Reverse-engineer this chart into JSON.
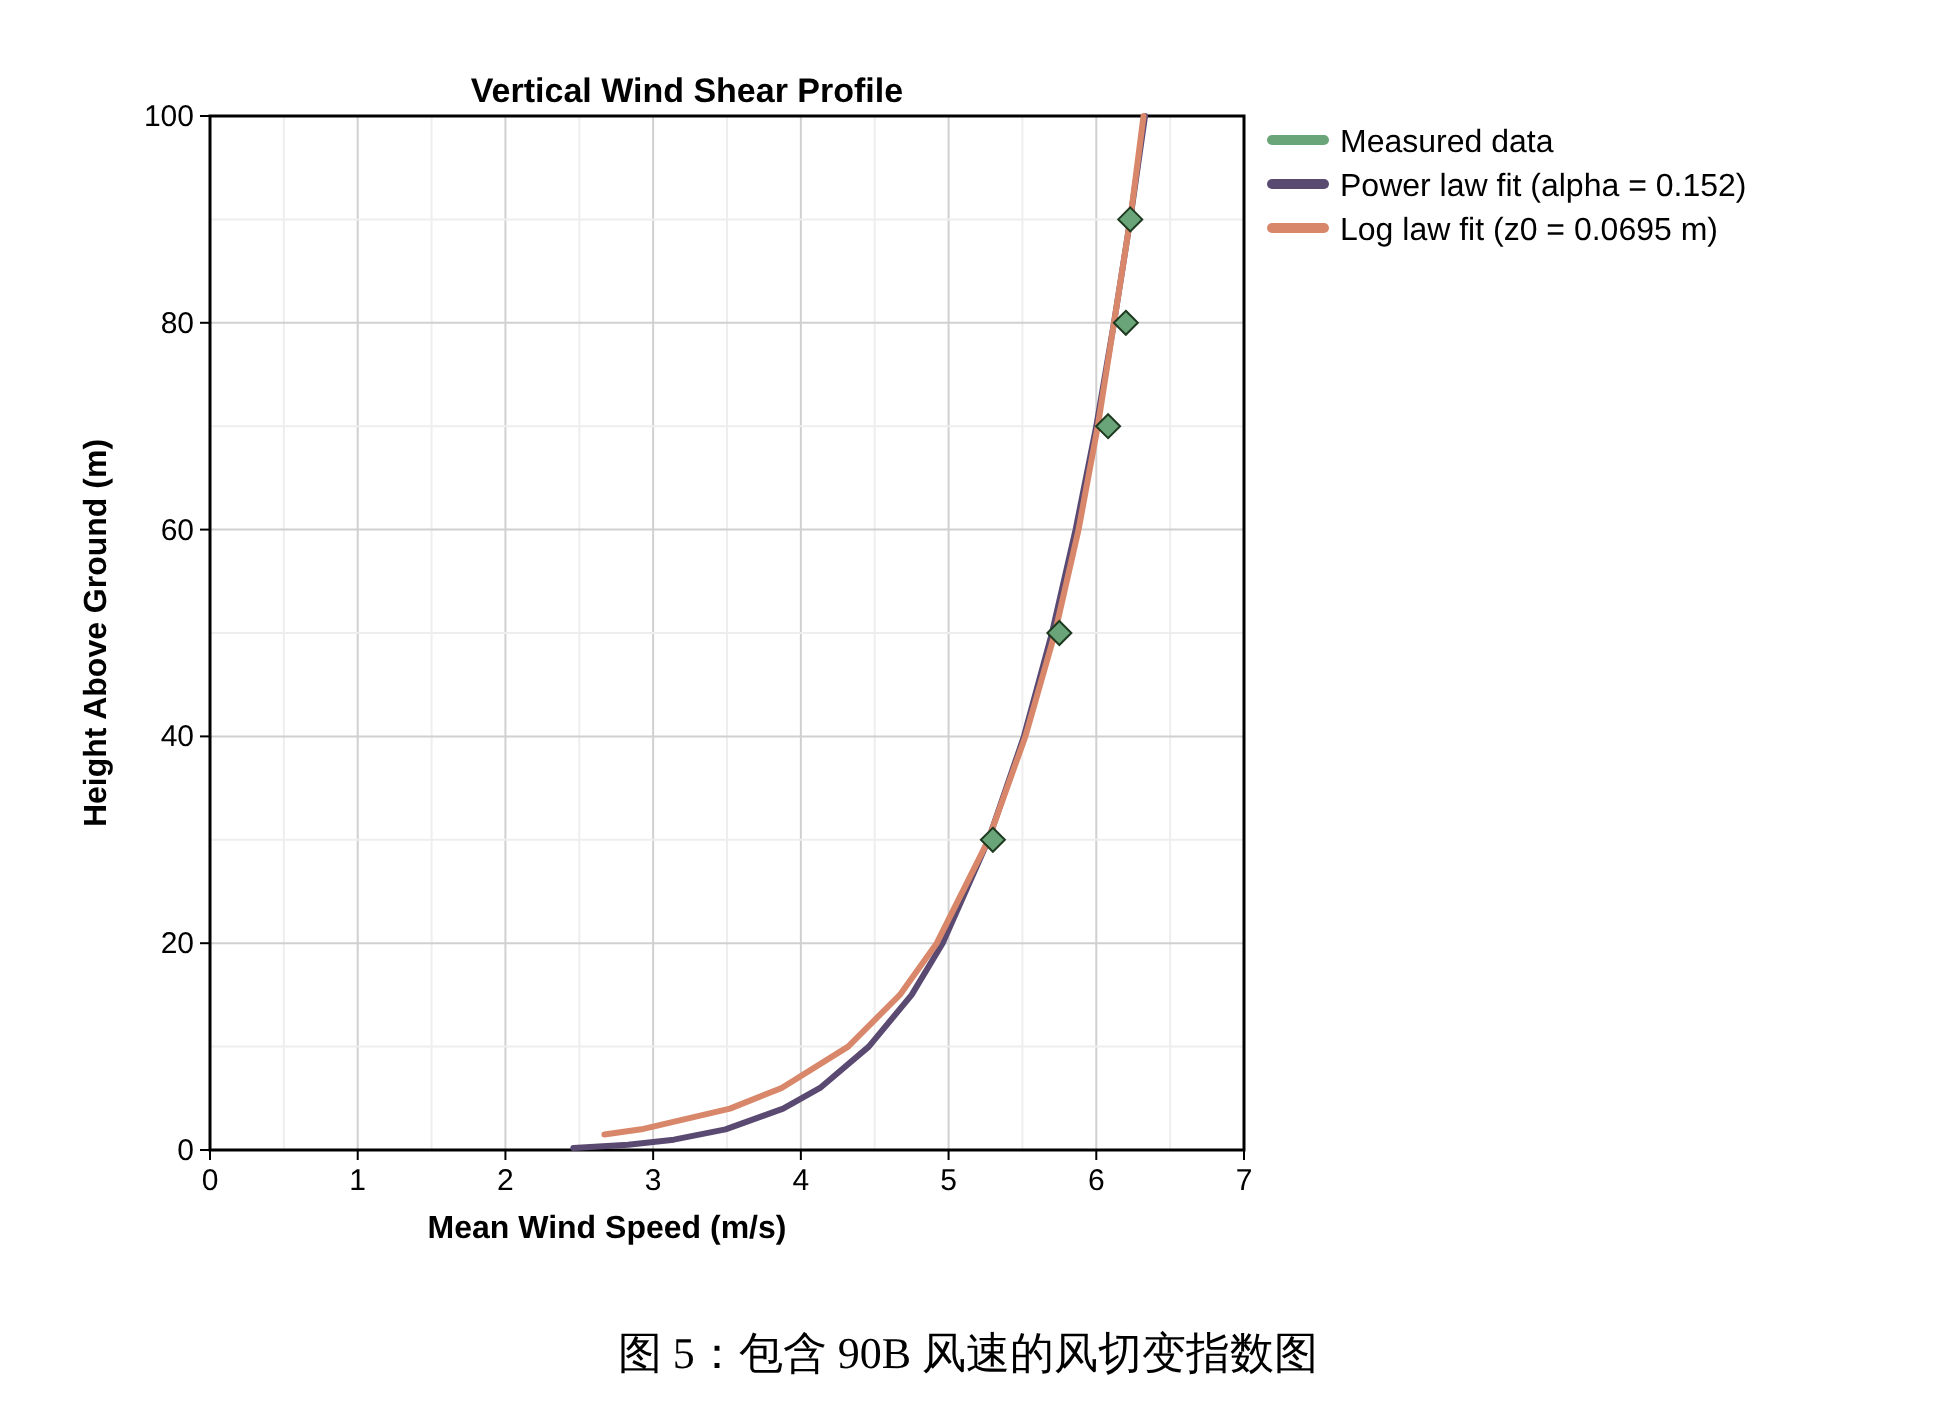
{
  "chart_data": {
    "type": "line",
    "title": "Vertical Wind Shear Profile",
    "xlabel": "Mean Wind Speed (m/s)",
    "ylabel": "Height Above Ground (m)",
    "xlim": [
      0,
      7
    ],
    "ylim": [
      0,
      100
    ],
    "xticks": [
      0,
      1,
      2,
      3,
      4,
      5,
      6,
      7
    ],
    "yticks": [
      0,
      20,
      40,
      60,
      80,
      100
    ],
    "grid": true,
    "legend": "right",
    "series": [
      {
        "name": "Measured data",
        "type": "scatter",
        "marker": "diamond",
        "color": "#6aa57a",
        "x": [
          5.3,
          5.75,
          6.08,
          6.2,
          6.23
        ],
        "values": [
          30,
          50,
          70,
          80,
          90
        ]
      },
      {
        "name": "Power law fit (alpha = 0.152)",
        "color": "#5a4a72",
        "x": [
          2.46,
          2.83,
          3.14,
          3.49,
          3.88,
          4.13,
          4.46,
          4.75,
          4.96,
          5.27,
          5.51,
          5.7,
          5.86,
          6.0,
          6.12,
          6.23,
          6.33
        ],
        "values": [
          0.2,
          0.5,
          1,
          2,
          4,
          6,
          10,
          15,
          20,
          30,
          40,
          50,
          60,
          70,
          80,
          90,
          100
        ]
      },
      {
        "name": "Log law fit (z0 = 0.0695 m)",
        "color": "#d9876a",
        "x": [
          2.67,
          2.92,
          3.52,
          3.87,
          4.32,
          4.67,
          4.92,
          5.27,
          5.52,
          5.72,
          5.88,
          6.01,
          6.12,
          6.23,
          6.32
        ],
        "values": [
          1.5,
          2,
          4,
          6,
          10,
          15,
          20,
          30,
          40,
          50,
          60,
          70,
          80,
          90,
          100
        ]
      }
    ],
    "annotations": [
      "图 5：包含 90B 风速的风切变指数图"
    ]
  }
}
